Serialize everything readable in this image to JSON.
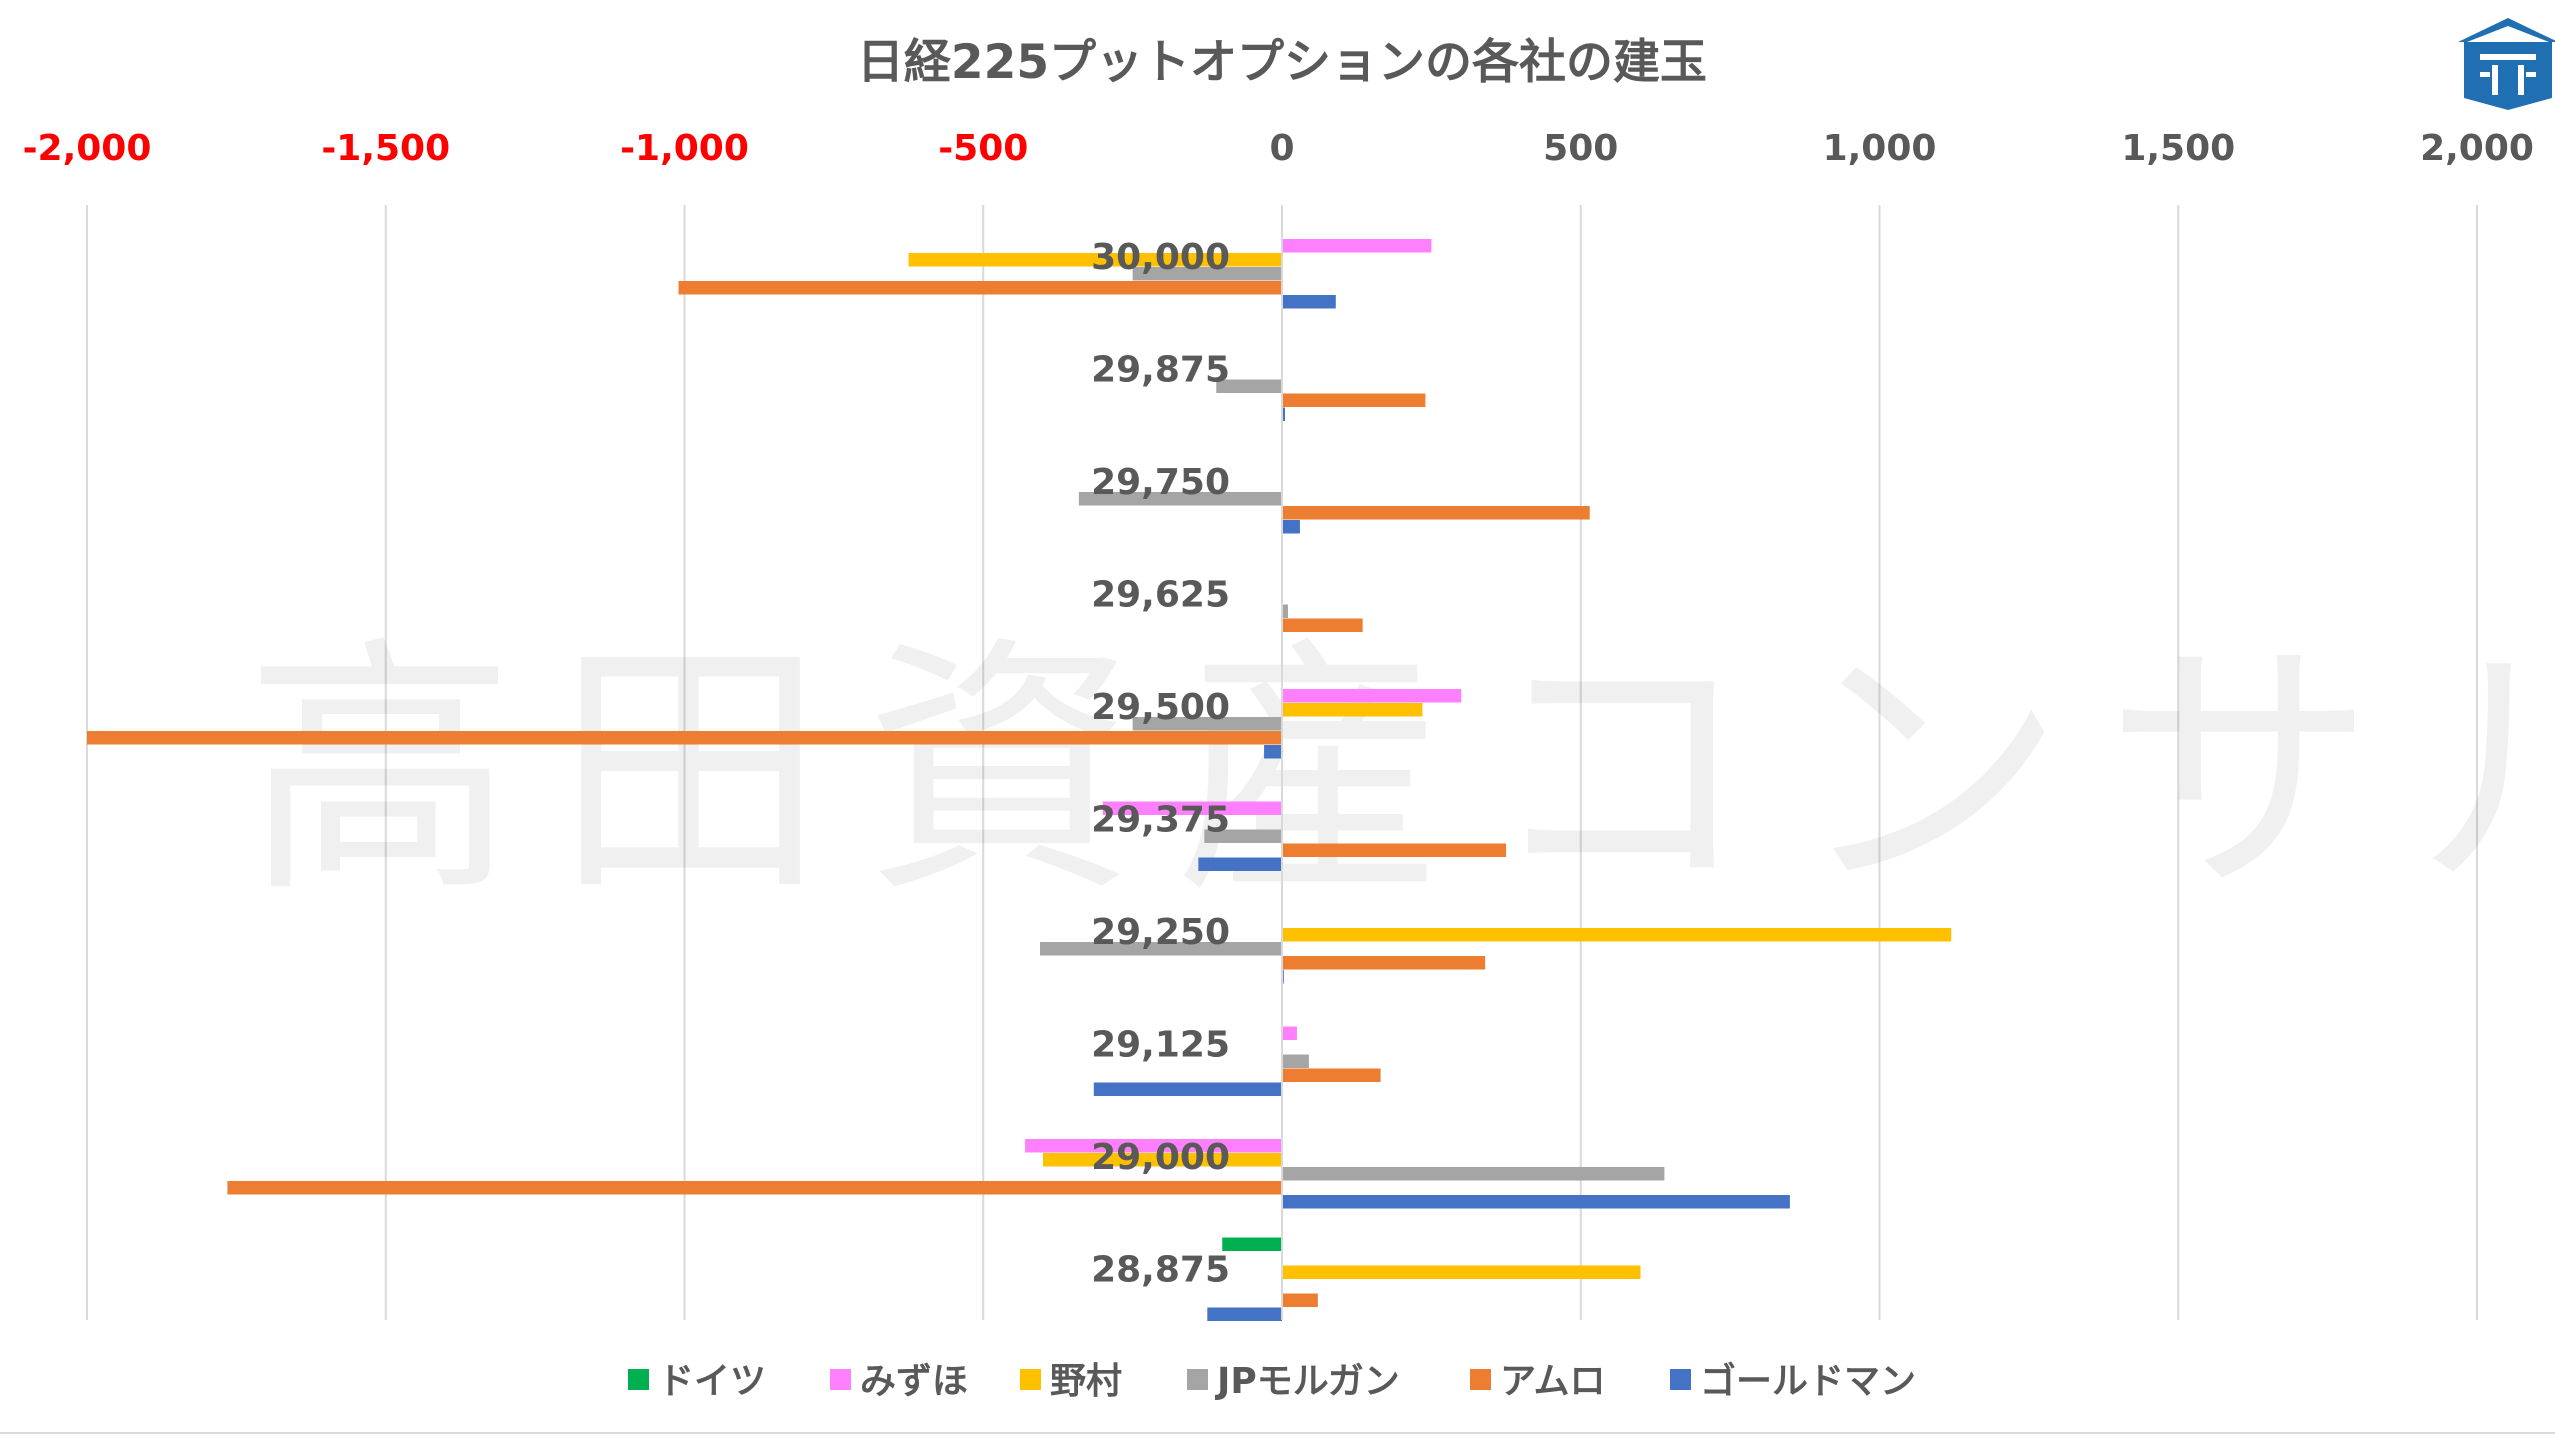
{
  "chart_data": {
    "type": "bar",
    "orientation": "horizontal",
    "title": "日経225プットオプションの各社の建玉",
    "xlim": [
      -2000,
      2000
    ],
    "x_ticks": [
      -2000,
      -1500,
      -1000,
      -500,
      0,
      500,
      1000,
      1500,
      2000
    ],
    "x_tick_labels": [
      "-2,000",
      "-1,500",
      "-1,000",
      "-500",
      "0",
      "500",
      "1,000",
      "1,500",
      "2,000"
    ],
    "negative_tick_color": "#ff0000",
    "grid": "vertical",
    "legend_position": "bottom",
    "categories": [
      "30,000",
      "29,875",
      "29,750",
      "29,625",
      "29,500",
      "29,375",
      "29,250",
      "29,125",
      "29,000",
      "28,875"
    ],
    "series": [
      {
        "name": "ドイツ",
        "color": "#00b050",
        "values": [
          0,
          0,
          0,
          0,
          0,
          0,
          0,
          0,
          0,
          -100
        ]
      },
      {
        "name": "みずほ",
        "color": "#ff80ff",
        "values": [
          250,
          0,
          0,
          0,
          300,
          -300,
          0,
          25,
          -430,
          0
        ]
      },
      {
        "name": "野村",
        "color": "#ffc000",
        "values": [
          -625,
          0,
          0,
          0,
          235,
          0,
          1120,
          0,
          -400,
          600
        ]
      },
      {
        "name": "JPモルガン",
        "color": "#a5a5a5",
        "values": [
          -250,
          -110,
          -340,
          10,
          -250,
          -130,
          -405,
          45,
          640,
          0
        ]
      },
      {
        "name": "アムロ",
        "color": "#ed7d31",
        "values": [
          -1010,
          240,
          515,
          135,
          -2000,
          375,
          340,
          165,
          -1765,
          60
        ]
      },
      {
        "name": "ゴールドマン",
        "color": "#4472c4",
        "values": [
          90,
          5,
          30,
          0,
          -30,
          -140,
          3,
          -315,
          850,
          -125
        ]
      }
    ]
  },
  "watermark": "高田資産コンサル",
  "logo": {
    "icon": "shrine-roof-logo-icon",
    "color": "#1f6fb2"
  }
}
